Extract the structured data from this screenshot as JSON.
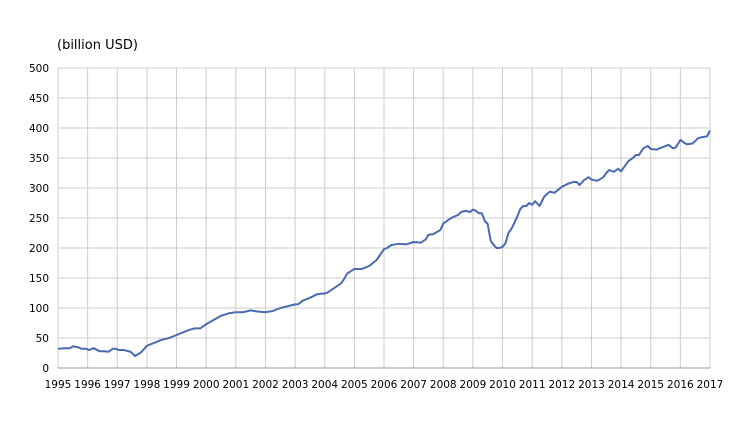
{
  "chart_data": {
    "type": "line",
    "title": "",
    "ylabel": "(billion USD)",
    "xlabel": "",
    "ylim": [
      0,
      500
    ],
    "xlim": [
      1995,
      2017
    ],
    "grid": true,
    "legend": "none",
    "line_color": "#4a6baf",
    "y_ticks": [
      "0",
      "50",
      "100",
      "150",
      "200",
      "250",
      "300",
      "350",
      "400",
      "450",
      "500"
    ],
    "x_ticks": [
      "1995",
      "1996",
      "1997",
      "1998",
      "1999",
      "2000",
      "2001",
      "2002",
      "2003",
      "2004",
      "2005",
      "2006",
      "2007",
      "2008",
      "2009",
      "2010",
      "2011",
      "2012",
      "2013",
      "2014",
      "2015",
      "2016",
      "2017"
    ],
    "series": [
      {
        "x": [
          1995.0,
          1995.25,
          1995.4,
          1995.5,
          1995.65,
          1995.8,
          1995.95,
          1996.05,
          1996.2,
          1996.4,
          1996.55,
          1996.7,
          1996.85,
          1996.95,
          1997.05,
          1997.2,
          1997.3,
          1997.45,
          1997.6,
          1997.8,
          1998.0,
          1998.25,
          1998.5,
          1998.75,
          1999.0,
          1999.2,
          1999.4,
          1999.6,
          1999.8,
          2000.0,
          2000.25,
          2000.5,
          2000.75,
          2001.0,
          2001.25,
          2001.5,
          2001.75,
          2002.0,
          2002.25,
          2002.5,
          2002.75,
          2003.0,
          2003.1,
          2003.25,
          2003.4,
          2003.5,
          2003.75,
          2003.9,
          2004.0,
          2004.1,
          2004.25,
          2004.4,
          2004.55,
          2004.65,
          2004.75,
          2004.9,
          2005.0,
          2005.25,
          2005.4,
          2005.5,
          2005.75,
          2006.0,
          2006.1,
          2006.25,
          2006.5,
          2006.75,
          2007.0,
          2007.25,
          2007.4,
          2007.5,
          2007.65,
          2007.8,
          2007.9,
          2007.95,
          2008.0,
          2008.1,
          2008.2,
          2008.35,
          2008.5,
          2008.6,
          2008.75,
          2008.9,
          2009.0,
          2009.1,
          2009.2,
          2009.3,
          2009.4,
          2009.5,
          2009.6,
          2009.7,
          2009.8,
          2009.9,
          2010.0,
          2010.1,
          2010.2,
          2010.3,
          2010.4,
          2010.5,
          2010.6,
          2010.7,
          2010.8,
          2010.9,
          2011.0,
          2011.1,
          2011.25,
          2011.4,
          2011.5,
          2011.6,
          2011.75,
          2011.9,
          2012.0,
          2012.25,
          2012.4,
          2012.5,
          2012.6,
          2012.75,
          2012.9,
          2013.0,
          2013.2,
          2013.4,
          2013.5,
          2013.6,
          2013.75,
          2013.9,
          2014.0,
          2014.25,
          2014.4,
          2014.5,
          2014.6,
          2014.75,
          2014.9,
          2015.0,
          2015.2,
          2015.4,
          2015.6,
          2015.75,
          2015.85,
          2016.0,
          2016.2,
          2016.4,
          2016.5,
          2016.6,
          2016.75,
          2016.9,
          2017.0
        ],
        "values": [
          32,
          33,
          33,
          36,
          35,
          32,
          32,
          30,
          33,
          28,
          28,
          27,
          32,
          32,
          30,
          30,
          29,
          27,
          20,
          26,
          37,
          42,
          47,
          50,
          55,
          59,
          63,
          66,
          66,
          73,
          80,
          87,
          91,
          93,
          93,
          96,
          94,
          93,
          95,
          100,
          103,
          106,
          106,
          112,
          115,
          117,
          123,
          124,
          124,
          126,
          131,
          136,
          141,
          148,
          157,
          162,
          165,
          165,
          168,
          170,
          180,
          198,
          200,
          205,
          207,
          206,
          210,
          209,
          214,
          222,
          223,
          227,
          230,
          235,
          241,
          244,
          248,
          252,
          255,
          260,
          262,
          260,
          264,
          262,
          258,
          258,
          245,
          240,
          212,
          205,
          200,
          200,
          202,
          208,
          225,
          232,
          242,
          253,
          265,
          270,
          270,
          275,
          272,
          278,
          270,
          285,
          290,
          294,
          292,
          298,
          302,
          308,
          310,
          310,
          305,
          313,
          318,
          314,
          312,
          318,
          325,
          330,
          327,
          332,
          328,
          345,
          350,
          355,
          355,
          366,
          370,
          365,
          364,
          368,
          372,
          366,
          368,
          380,
          373,
          374,
          378,
          383,
          385,
          386,
          396
        ]
      }
    ]
  }
}
